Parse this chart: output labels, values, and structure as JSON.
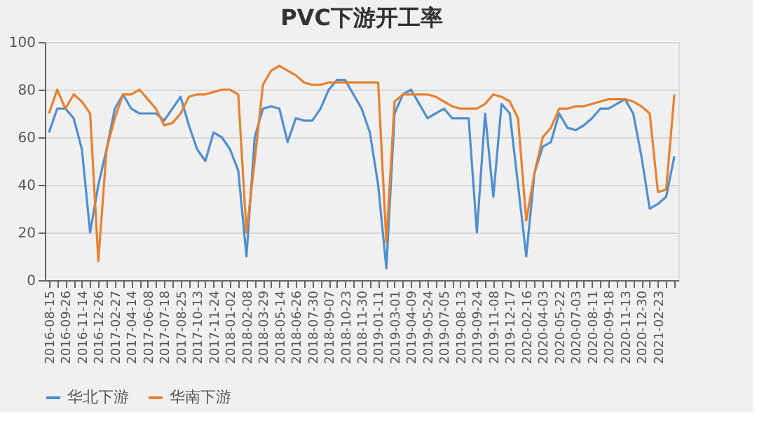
{
  "chart_data": {
    "type": "line",
    "title": "PVC下游开工率",
    "categories": [
      "2016-08-15",
      null,
      "2016-09-26",
      null,
      "2016-11-14",
      null,
      "2016-12-26",
      null,
      "2017-02-27",
      null,
      "2017-04-14",
      null,
      "2017-06-08",
      null,
      "2017-07-18",
      null,
      "2017-08-25",
      null,
      "2017-10-13",
      null,
      "2017-11-24",
      null,
      "2018-01-02",
      null,
      "2018-02-08",
      null,
      "2018-03-29",
      null,
      "2018-05-14",
      null,
      "2018-06-26",
      null,
      "2018-07-30",
      null,
      "2018-09-07",
      null,
      "2018-10-23",
      null,
      "2018-11-30",
      null,
      "2019-01-11",
      null,
      "2019-03-01",
      null,
      "2019-04-09",
      null,
      "2019-05-24",
      null,
      "2019-07-05",
      null,
      "2019-08-13",
      null,
      "2019-09-24",
      null,
      "2019-11-08",
      null,
      "2019-12-17",
      null,
      "2020-02-16",
      null,
      "2020-04-03",
      null,
      "2020-05-22",
      null,
      "2020-07-03",
      null,
      "2020-08-11",
      null,
      "2020-09-18",
      null,
      "2020-11-13",
      null,
      "2020-12-30",
      null,
      "2021-02-23",
      null,
      null
    ],
    "series": [
      {
        "name": "华北下游",
        "color": "#4f8fcf",
        "values": [
          62,
          72,
          72,
          68,
          55,
          20,
          40,
          55,
          72,
          78,
          72,
          70,
          70,
          70,
          67,
          72,
          77,
          65,
          55,
          50,
          62,
          60,
          55,
          46,
          10,
          60,
          72,
          73,
          72,
          58,
          68,
          67,
          67,
          72,
          80,
          84,
          84,
          78,
          72,
          62,
          40,
          5,
          70,
          78,
          80,
          74,
          68,
          70,
          72,
          68,
          68,
          68,
          20,
          70,
          35,
          74,
          70,
          40,
          10,
          45,
          56,
          58,
          70,
          64,
          63,
          65,
          68,
          72,
          72,
          74,
          76,
          70,
          52,
          30,
          32,
          35,
          52
        ]
      },
      {
        "name": "华南下游",
        "color": "#e8812f",
        "values": [
          70,
          80,
          72,
          78,
          75,
          70,
          8,
          55,
          68,
          78,
          78,
          80,
          76,
          72,
          65,
          66,
          70,
          77,
          78,
          78,
          79,
          80,
          80,
          78,
          20,
          50,
          82,
          88,
          90,
          88,
          86,
          83,
          82,
          82,
          83,
          83,
          83,
          83,
          83,
          83,
          83,
          16,
          75,
          78,
          78,
          78,
          78,
          77,
          75,
          73,
          72,
          72,
          72,
          74,
          78,
          77,
          75,
          68,
          25,
          45,
          60,
          64,
          72,
          72,
          73,
          73,
          74,
          75,
          76,
          76,
          76,
          75,
          73,
          70,
          37,
          38,
          78
        ]
      }
    ],
    "ylim": [
      0,
      100
    ],
    "yticks": [
      0,
      20,
      40,
      60,
      80,
      100
    ],
    "grid": "y",
    "legend": "bottom"
  }
}
